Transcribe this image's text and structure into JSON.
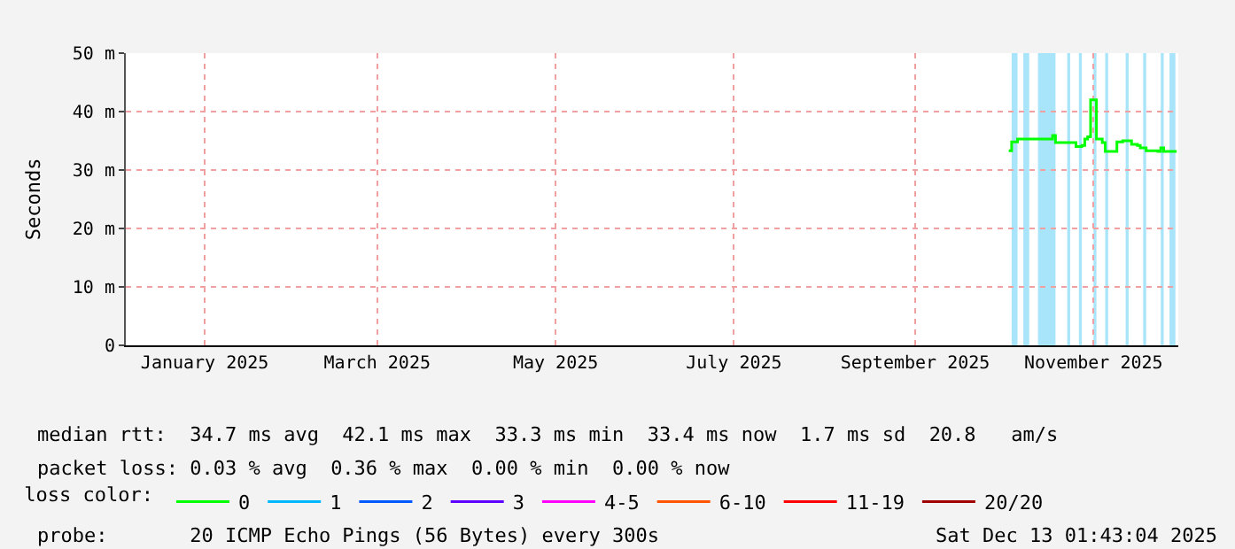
{
  "chart_data": {
    "type": "line",
    "ylabel": "Seconds",
    "x": [
      "2025-10-17",
      "2025-10-18",
      "2025-10-20",
      "2025-10-31",
      "2025-11-01",
      "2025-11-02",
      "2025-11-08",
      "2025-11-09",
      "2025-11-11",
      "2025-11-12",
      "2025-11-13",
      "2025-11-14",
      "2025-11-15",
      "2025-11-16",
      "2025-11-18",
      "2025-11-19",
      "2025-11-22",
      "2025-11-23",
      "2025-11-25",
      "2025-11-28",
      "2025-11-30",
      "2025-12-01",
      "2025-12-03",
      "2025-12-07",
      "2025-12-08",
      "2025-12-09",
      "2025-12-13"
    ],
    "series": [
      {
        "name": "0",
        "color": "#00ff00",
        "values": [
          33.3,
          34.8,
          35.3,
          35.3,
          35.9,
          34.7,
          34.7,
          34.0,
          34.2,
          35.3,
          35.7,
          42.0,
          42.0,
          35.3,
          34.7,
          33.2,
          33.2,
          34.8,
          35.0,
          34.4,
          34.2,
          33.8,
          33.3,
          33.2,
          33.8,
          33.2,
          33.4
        ]
      },
      {
        "name": "1",
        "color": "#00b8ff",
        "values": [
          null,
          null,
          null,
          null,
          null,
          null,
          null,
          null,
          null,
          null,
          null,
          null,
          null,
          null,
          null,
          null,
          null,
          null,
          null,
          null,
          null,
          null,
          null,
          null,
          null,
          null,
          null
        ]
      },
      {
        "name": "2",
        "color": "#0059ff",
        "values": [
          null,
          null,
          null,
          null,
          null,
          null,
          null,
          null,
          null,
          null,
          null,
          null,
          null,
          null,
          null,
          null,
          null,
          null,
          null,
          null,
          null,
          null,
          null,
          null,
          null,
          null,
          null
        ]
      },
      {
        "name": "3",
        "color": "#5e00ff",
        "values": [
          null,
          null,
          null,
          null,
          null,
          null,
          null,
          null,
          null,
          null,
          null,
          null,
          null,
          null,
          null,
          null,
          null,
          null,
          null,
          null,
          null,
          null,
          null,
          null,
          null,
          null,
          null
        ]
      },
      {
        "name": "4-5",
        "color": "#ff00ff",
        "values": [
          null,
          null,
          null,
          null,
          null,
          null,
          null,
          null,
          null,
          null,
          null,
          null,
          null,
          null,
          null,
          null,
          null,
          null,
          null,
          null,
          null,
          null,
          null,
          null,
          null,
          null,
          null
        ]
      },
      {
        "name": "6-10",
        "color": "#ff5500",
        "values": [
          null,
          null,
          null,
          null,
          null,
          null,
          null,
          null,
          null,
          null,
          null,
          null,
          null,
          null,
          null,
          null,
          null,
          null,
          null,
          null,
          null,
          null,
          null,
          null,
          null,
          null,
          null
        ]
      },
      {
        "name": "11-19",
        "color": "#ff0000",
        "values": [
          null,
          null,
          null,
          null,
          null,
          null,
          null,
          null,
          null,
          null,
          null,
          null,
          null,
          null,
          null,
          null,
          null,
          null,
          null,
          null,
          null,
          null,
          null,
          null,
          null,
          null,
          null
        ]
      },
      {
        "name": "20/20",
        "color": "#a10000",
        "values": [
          null,
          null,
          null,
          null,
          null,
          null,
          null,
          null,
          null,
          null,
          null,
          null,
          null,
          null,
          null,
          null,
          null,
          null,
          null,
          null,
          null,
          null,
          null,
          null,
          null,
          null,
          null
        ]
      }
    ],
    "legend": "bottom",
    "legend_title": "loss color:",
    "xlim": [
      "2024-12-19",
      "2025-12-14"
    ],
    "xticks": [
      {
        "value": "2025-01-15",
        "label": "January 2025"
      },
      {
        "value": "2025-03-15",
        "label": "March 2025"
      },
      {
        "value": "2025-05-15",
        "label": "May 2025"
      },
      {
        "value": "2025-07-15",
        "label": "July 2025"
      },
      {
        "value": "2025-09-15",
        "label": "September 2025"
      },
      {
        "value": "2025-11-15",
        "label": "November 2025"
      }
    ],
    "ylim": [
      0,
      50
    ],
    "yticks": [
      0,
      {
        "value": 10,
        "label": "10 m"
      },
      {
        "value": 20,
        "label": "20 m"
      },
      {
        "value": 30,
        "label": "30 m"
      },
      {
        "value": 40,
        "label": "40 m"
      },
      {
        "value": 50,
        "label": "50 m"
      }
    ],
    "grid": true,
    "bands": [
      {
        "axis": "x",
        "from": "2025-10-18",
        "to": "2025-10-20",
        "color": "#a8e4fa"
      },
      {
        "axis": "x",
        "from": "2025-10-22",
        "to": "2025-10-24",
        "color": "#a8e4fa"
      },
      {
        "axis": "x",
        "from": "2025-10-27",
        "to": "2025-11-02",
        "color": "#a8e4fa"
      },
      {
        "axis": "x",
        "from": "2025-11-06",
        "to": "2025-11-07",
        "color": "#a8e4fa"
      },
      {
        "axis": "x",
        "from": "2025-11-10",
        "to": "2025-11-11",
        "color": "#a8e4fa"
      },
      {
        "axis": "x",
        "from": "2025-11-15",
        "to": "2025-11-16",
        "color": "#a8e4fa"
      },
      {
        "axis": "x",
        "from": "2025-11-19",
        "to": "2025-11-20",
        "color": "#a8e4fa"
      },
      {
        "axis": "x",
        "from": "2025-11-26",
        "to": "2025-11-27",
        "color": "#a8e4fa"
      },
      {
        "axis": "x",
        "from": "2025-12-02",
        "to": "2025-12-03",
        "color": "#a8e4fa"
      },
      {
        "axis": "x",
        "from": "2025-12-08",
        "to": "2025-12-09",
        "color": "#a8e4fa"
      },
      {
        "axis": "x",
        "from": "2025-12-11",
        "to": "2025-12-13",
        "color": "#a8e4fa"
      }
    ],
    "annotations": [
      "median rtt:  34.7 ms avg  42.1 ms max  33.3 ms min  33.4 ms now  1.7 ms sd  20.8   am/s",
      "packet loss: 0.03 % avg  0.36 % max  0.00 % min  0.00 % now",
      "probe:       20 ICMP Echo Pings (56 Bytes) every 300s",
      "Sat Dec 13 01:43:04 2025"
    ]
  }
}
